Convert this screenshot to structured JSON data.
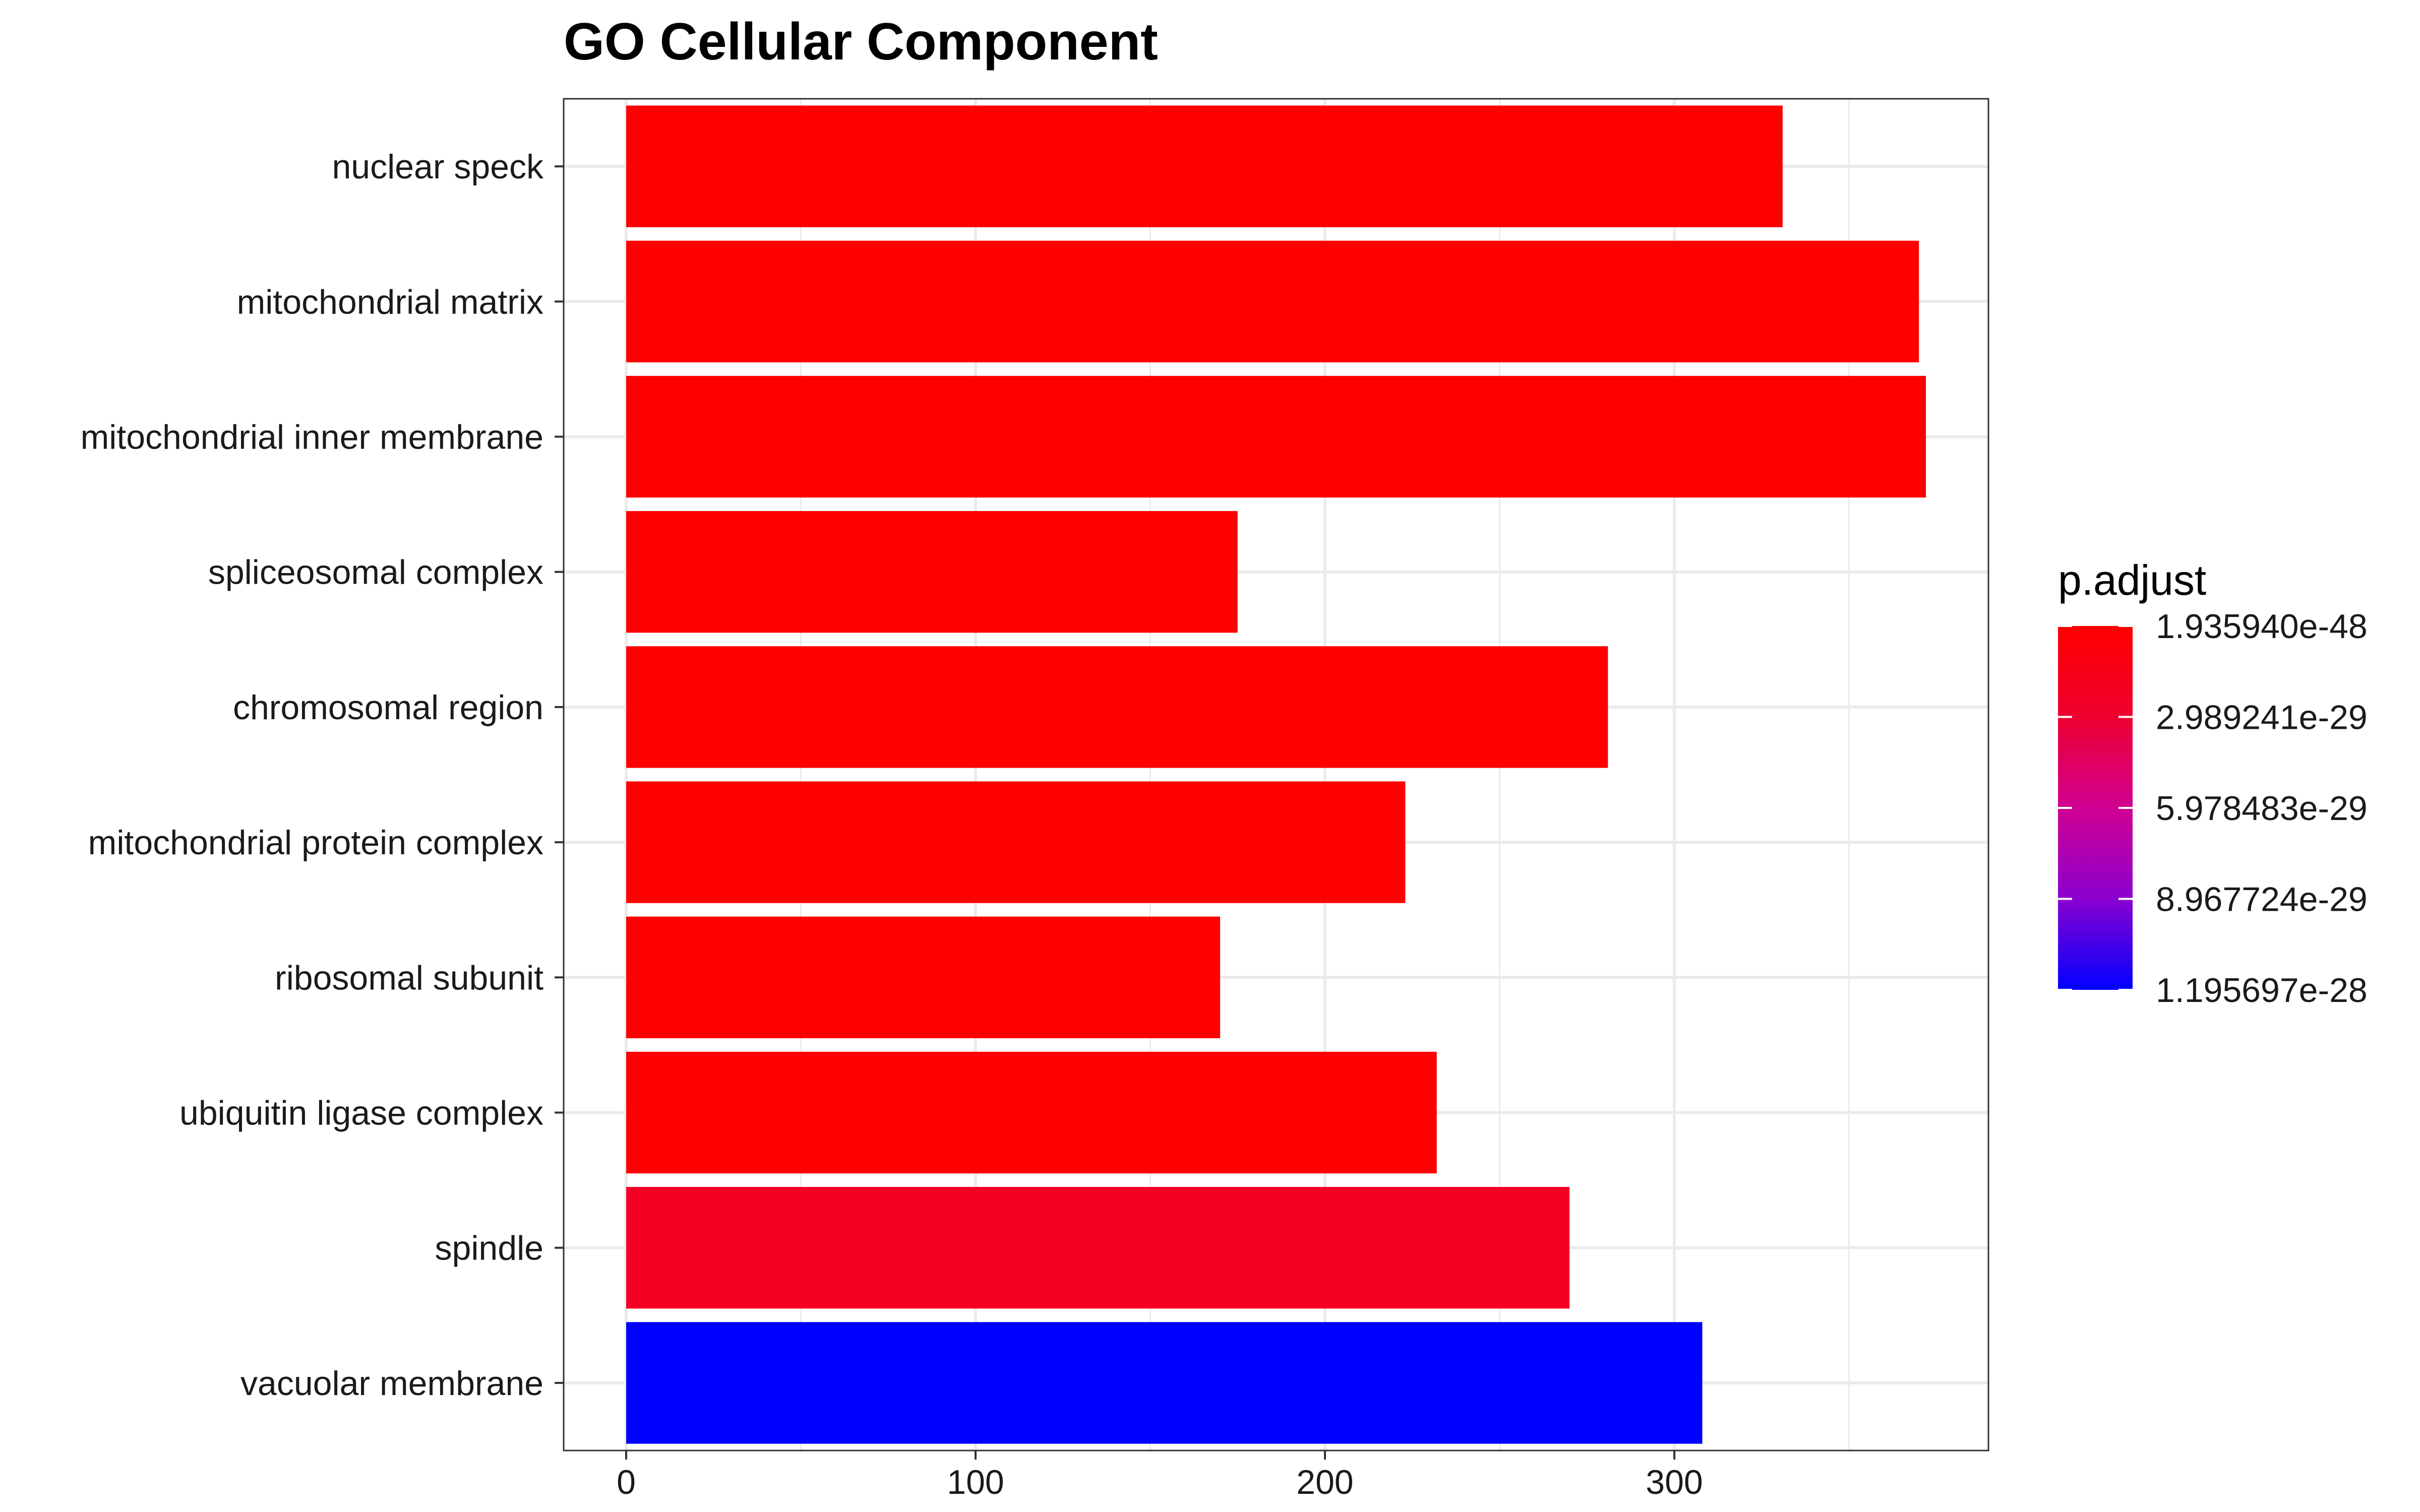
{
  "chart_data": {
    "type": "bar",
    "orientation": "horizontal",
    "title": "GO Cellular Component",
    "xlabel": "",
    "ylabel": "",
    "xlim": [
      0,
      390
    ],
    "x_ticks": [
      0,
      100,
      200,
      300
    ],
    "grid": true,
    "categories": [
      "nuclear speck",
      "mitochondrial matrix",
      "mitochondrial inner membrane",
      "spliceosomal complex",
      "chromosomal region",
      "mitochondrial protein complex",
      "ribosomal subunit",
      "ubiquitin ligase complex",
      "spindle",
      "vacuolar membrane"
    ],
    "values": [
      331,
      370,
      372,
      175,
      281,
      223,
      170,
      232,
      270,
      308
    ],
    "p_adjust": [
      1.9e-48,
      1e-40,
      1e-40,
      1e-35,
      1e-33,
      1e-32,
      1e-31,
      1e-31,
      1e-29,
      1.195697e-28
    ],
    "colors": [
      "#FF0000",
      "#FF0000",
      "#FF0000",
      "#FF0000",
      "#FF0001",
      "#FF0001",
      "#FF0002",
      "#FF0002",
      "#F50025",
      "#0000FF"
    ],
    "legend": {
      "title": "p.adjust",
      "position": "right",
      "gradient_low_color": "#FF0000",
      "gradient_high_color": "#0000FF",
      "labels": [
        "1.935940e-48",
        "2.989241e-29",
        "5.978483e-29",
        "8.967724e-29",
        "1.195697e-28"
      ]
    }
  }
}
